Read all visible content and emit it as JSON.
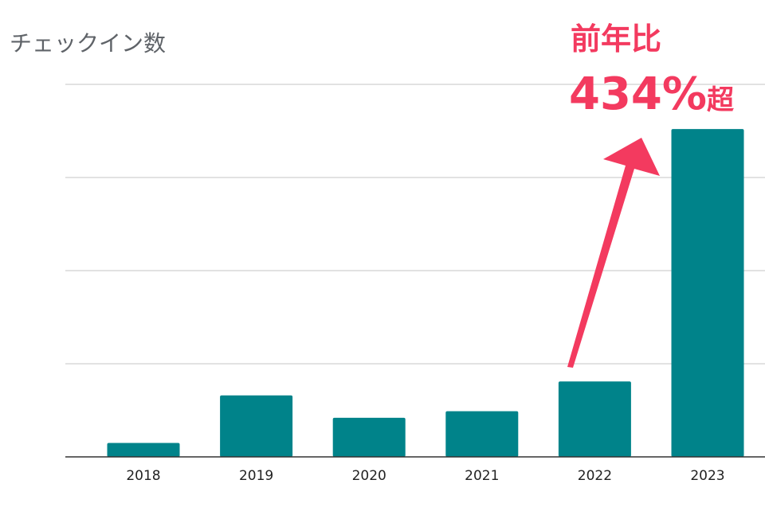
{
  "chart_data": {
    "type": "bar",
    "title": "チェックイン数",
    "xlabel": "",
    "ylabel": "",
    "categories": [
      "2018",
      "2019",
      "2020",
      "2021",
      "2022",
      "2023"
    ],
    "values": [
      0.15,
      0.66,
      0.42,
      0.49,
      0.81,
      3.52
    ],
    "ylim": [
      0,
      4
    ],
    "grid": true,
    "y_tick_labels_visible": false,
    "bar_color": "#00838a",
    "annotation": {
      "line1": "前年比",
      "line2_value": "434%",
      "line2_suffix": "超",
      "color": "#f33a5f",
      "arrow_from": "2022",
      "arrow_to": "2023"
    }
  }
}
